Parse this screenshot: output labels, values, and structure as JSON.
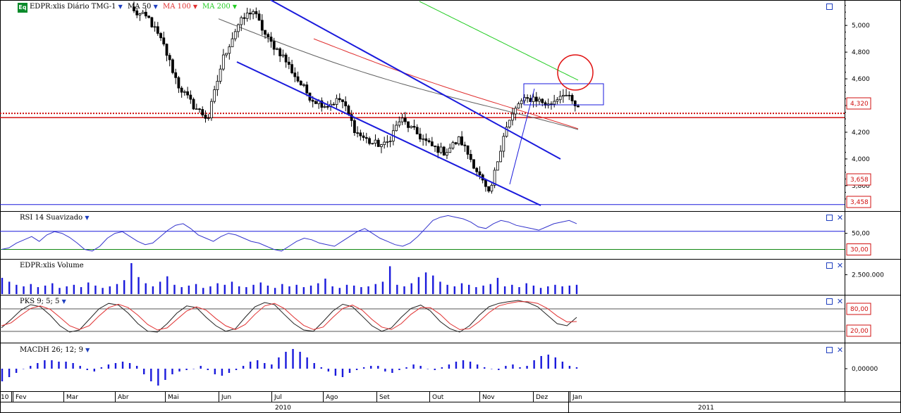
{
  "main_pane": {
    "eq_badge": "Eq",
    "symbol_label": "EDPR:xlis Diário TMG-1",
    "ma_50_label": "MA 50",
    "ma_100_label": "MA 100",
    "ma_200_label": "MA 200",
    "colors": {
      "up_down_candles": "#000000",
      "ma_50": "#606060",
      "ma_100": "#e03030",
      "ma_200": "#22cc22",
      "channel": "#1a1adc",
      "support": "#d01010",
      "highlight_circle": "#e01010"
    }
  },
  "rsi_pane": {
    "label": "RSI 14 Suavizado",
    "tick_50": "50,00",
    "marker_30": "30,00"
  },
  "volume_pane": {
    "label": "EDPR:xlis Volume",
    "tick": "2.500.000"
  },
  "pks_pane": {
    "label": "PKS 9; 5; 5",
    "marker_80": "80,00",
    "marker_20": "20,00"
  },
  "macd_pane": {
    "label": "MACDH 26; 12; 9",
    "tick": "0,00000"
  },
  "price_axis": {
    "ticks": [
      "5,000",
      "4,800",
      "4,600",
      "4,400",
      "4,200",
      "4,000",
      "3,800"
    ],
    "markers": [
      {
        "value": "4,320",
        "color": "#d01010"
      },
      {
        "value": "3,658",
        "color": "#d01010"
      },
      {
        "value": "3,458",
        "color": "#d01010"
      }
    ]
  },
  "time_axis": {
    "first_label": "10",
    "months": [
      "Fev",
      "Mar",
      "Abr",
      "Mai",
      "Jun",
      "Jul",
      "Ago",
      "Set",
      "Out",
      "Nov",
      "Dez",
      "Jan"
    ],
    "years": [
      "2010",
      "2011"
    ]
  },
  "chart_data": [
    {
      "type": "candlestick",
      "title": "EDPR:xlis Diário TMG-1",
      "x_period": "2010-01 to 2011-01 (daily)",
      "ylim": [
        3.62,
        5.18
      ],
      "y_ticks": [
        3.8,
        4.0,
        4.2,
        4.4,
        4.6,
        4.8,
        5.0
      ],
      "close_path": [
        {
          "month": "Mar",
          "value": 5.1
        },
        {
          "month": "Abr",
          "value": 5.05
        },
        {
          "month": "Abr",
          "value": 4.85
        },
        {
          "month": "Mai",
          "value": 4.55
        },
        {
          "month": "Mai",
          "value": 4.4
        },
        {
          "month": "Jun",
          "value": 4.3
        },
        {
          "month": "Jun",
          "value": 4.75
        },
        {
          "month": "Jun",
          "value": 5.0
        },
        {
          "month": "Jul",
          "value": 5.12
        },
        {
          "month": "Jul",
          "value": 4.9
        },
        {
          "month": "Jul",
          "value": 4.78
        },
        {
          "month": "Ago",
          "value": 4.6
        },
        {
          "month": "Ago",
          "value": 4.45
        },
        {
          "month": "Ago",
          "value": 4.4
        },
        {
          "month": "Set",
          "value": 4.45
        },
        {
          "month": "Set",
          "value": 4.2
        },
        {
          "month": "Set",
          "value": 4.12
        },
        {
          "month": "Out",
          "value": 4.1
        },
        {
          "month": "Out",
          "value": 4.3
        },
        {
          "month": "Out",
          "value": 4.2
        },
        {
          "month": "Nov",
          "value": 4.1
        },
        {
          "month": "Nov",
          "value": 4.05
        },
        {
          "month": "Nov",
          "value": 4.15
        },
        {
          "month": "Nov",
          "value": 3.95
        },
        {
          "month": "Nov",
          "value": 3.72
        },
        {
          "month": "Dez",
          "value": 4.2
        },
        {
          "month": "Dez",
          "value": 4.42
        },
        {
          "month": "Dez",
          "value": 4.46
        },
        {
          "month": "Dez",
          "value": 4.4
        },
        {
          "month": "Jan",
          "value": 4.5
        },
        {
          "month": "Jan",
          "value": 4.37
        }
      ],
      "moving_averages": [
        {
          "name": "MA 50",
          "start": 5.05,
          "end": 4.18
        },
        {
          "name": "MA 100",
          "start": 4.9,
          "end": 4.21
        },
        {
          "name": "MA 200",
          "start": 5.18,
          "end": 4.59
        }
      ],
      "horizontal_levels": [
        4.32,
        3.658,
        3.458
      ],
      "annotations": [
        "descending channel",
        "consolidation box",
        "circle at MA 200"
      ]
    },
    {
      "type": "line",
      "title": "RSI 14 Suavizado",
      "ylim": [
        20,
        75
      ],
      "reference": [
        30
      ],
      "values": [
        30,
        32,
        38,
        42,
        46,
        40,
        48,
        52,
        50,
        45,
        38,
        30,
        28,
        34,
        44,
        50,
        52,
        46,
        40,
        36,
        38,
        46,
        54,
        60,
        62,
        56,
        48,
        44,
        40,
        46,
        50,
        48,
        44,
        40,
        38,
        34,
        30,
        28,
        34,
        40,
        44,
        42,
        38,
        36,
        34,
        40,
        46,
        52,
        56,
        50,
        44,
        40,
        36,
        34,
        38,
        46,
        56,
        66,
        70,
        72,
        70,
        68,
        64,
        58,
        56,
        62,
        66,
        64,
        60,
        58,
        56,
        54,
        58,
        62,
        64,
        66,
        62
      ]
    },
    {
      "type": "bar",
      "title": "EDPR:xlis Volume",
      "y_tick": 2500000,
      "values": [
        2.1,
        1.6,
        1.2,
        1.0,
        1.3,
        0.9,
        1.1,
        1.4,
        0.8,
        1.0,
        1.2,
        0.9,
        1.5,
        1.1,
        0.8,
        1.0,
        1.3,
        1.8,
        4.0,
        2.2,
        1.4,
        1.0,
        1.6,
        2.3,
        1.2,
        0.9,
        1.1,
        1.3,
        0.8,
        1.0,
        1.4,
        1.2,
        1.6,
        1.0,
        0.9,
        1.2,
        1.5,
        1.1,
        0.8,
        1.3,
        1.0,
        1.2,
        0.9,
        1.1,
        1.4,
        2.0,
        1.0,
        0.8,
        1.2,
        1.1,
        0.9,
        1.0,
        1.3,
        1.6,
        3.6,
        1.2,
        1.0,
        1.4,
        2.2,
        2.8,
        2.4,
        1.6,
        1.2,
        1.0,
        1.4,
        1.2,
        0.9,
        1.1,
        1.3,
        2.1,
        1.0,
        1.2,
        0.9,
        1.4,
        1.1,
        0.8,
        1.0,
        1.2,
        1.0,
        1.1,
        1.2
      ]
    },
    {
      "type": "line",
      "title": "PKS 9; 5; 5",
      "ylim": [
        0,
        100
      ],
      "reference": [
        80,
        20
      ],
      "series": [
        {
          "name": "PKS %K",
          "values": [
            30,
            50,
            72,
            85,
            80,
            60,
            35,
            20,
            25,
            50,
            75,
            88,
            84,
            65,
            40,
            22,
            20,
            40,
            65,
            82,
            78,
            55,
            35,
            22,
            28,
            55,
            80,
            90,
            85,
            62,
            40,
            25,
            22,
            45,
            70,
            86,
            80,
            58,
            35,
            22,
            30,
            55,
            76,
            84,
            70,
            45,
            28,
            20,
            35,
            60,
            80,
            88,
            92,
            95,
            90,
            80,
            60,
            40,
            35,
            55
          ]
        },
        {
          "name": "Signal",
          "values": [
            35,
            42,
            60,
            76,
            82,
            74,
            55,
            35,
            26,
            35,
            58,
            78,
            86,
            78,
            60,
            38,
            25,
            30,
            50,
            70,
            80,
            72,
            52,
            35,
            26,
            38,
            62,
            82,
            88,
            76,
            55,
            36,
            26,
            32,
            55,
            76,
            84,
            72,
            50,
            32,
            26,
            40,
            62,
            78,
            78,
            62,
            40,
            26,
            28,
            45,
            66,
            82,
            88,
            92,
            92,
            88,
            76,
            58,
            44,
            45
          ]
        }
      ]
    },
    {
      "type": "bar",
      "title": "MACDH 26; 12; 9",
      "y_tick": 0,
      "values": [
        -0.9,
        -0.6,
        -0.3,
        0.0,
        0.2,
        0.4,
        0.6,
        0.6,
        0.5,
        0.5,
        0.4,
        0.2,
        -0.1,
        -0.2,
        0.1,
        0.3,
        0.4,
        0.5,
        0.4,
        0.2,
        -0.4,
        -0.9,
        -1.2,
        -0.8,
        -0.4,
        -0.2,
        -0.1,
        0.0,
        0.2,
        -0.1,
        -0.4,
        -0.5,
        -0.3,
        -0.1,
        0.2,
        0.5,
        0.6,
        0.4,
        0.3,
        0.8,
        1.2,
        1.4,
        1.2,
        0.8,
        0.4,
        0.1,
        -0.2,
        -0.5,
        -0.6,
        -0.3,
        -0.1,
        0.1,
        0.2,
        0.2,
        -0.2,
        -0.3,
        -0.1,
        0.1,
        0.3,
        0.2,
        0.0,
        -0.1,
        0.1,
        0.3,
        0.5,
        0.6,
        0.5,
        0.3,
        0.1,
        0.0,
        -0.1,
        0.2,
        0.3,
        0.1,
        0.2,
        0.6,
        0.9,
        1.0,
        0.8,
        0.5,
        0.2,
        0.1
      ]
    }
  ]
}
